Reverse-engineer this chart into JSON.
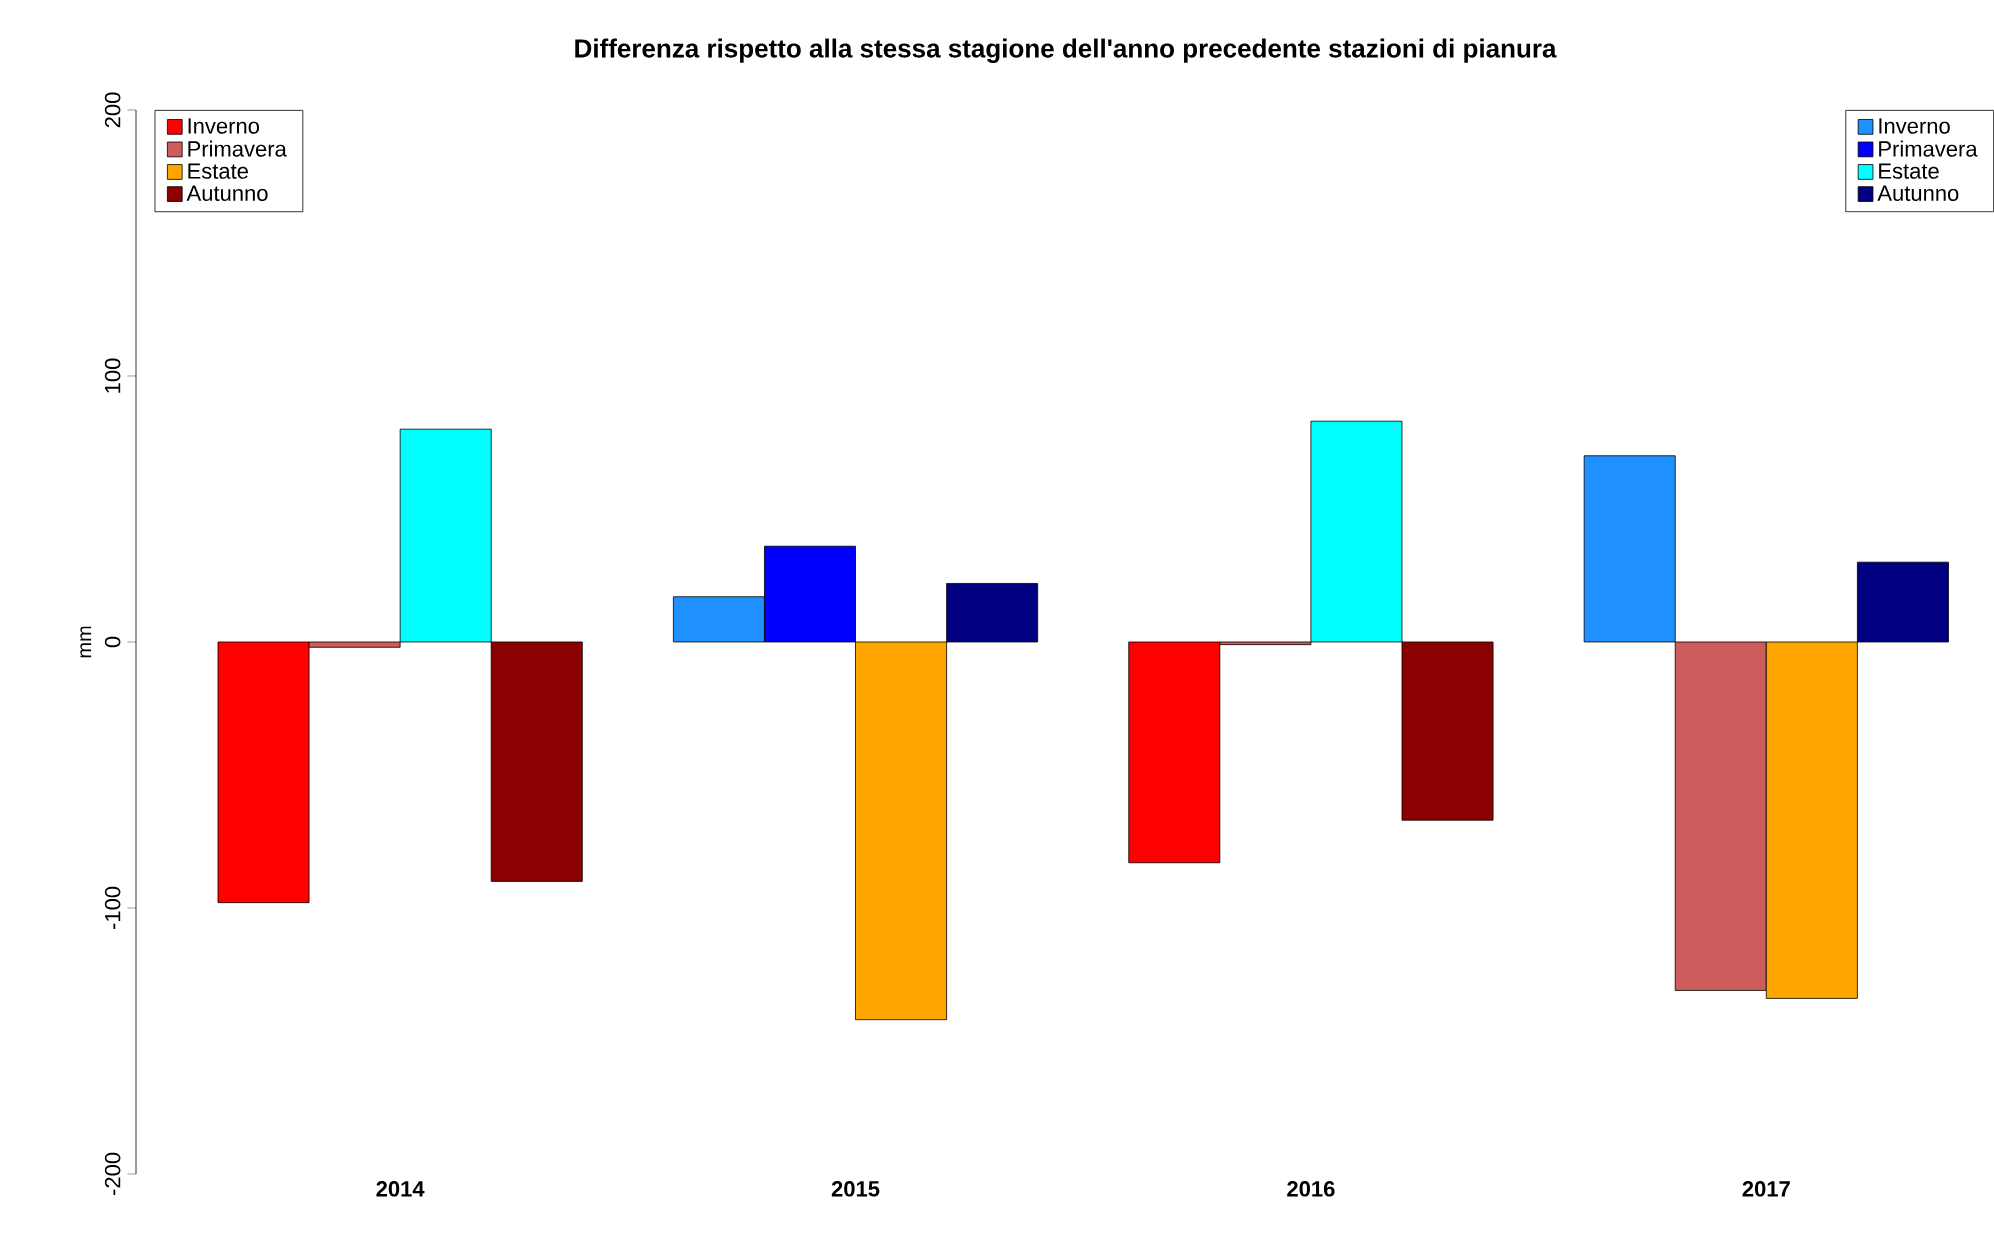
{
  "chart_data": {
    "type": "bar",
    "title": "Differenza rispetto alla stessa stagione dell'anno precedente stazioni di pianura",
    "ylabel": "mm",
    "categories": [
      "2014",
      "2015",
      "2016",
      "2017"
    ],
    "series": [
      {
        "name": "Inverno",
        "color": "#ff0000",
        "values": [
          -98,
          null,
          -83,
          null
        ]
      },
      {
        "name": "Primavera",
        "color": "#cd5c5c",
        "values": [
          -2,
          null,
          -1,
          -131
        ]
      },
      {
        "name": "Estate",
        "color": "#ffa500",
        "values": [
          null,
          -142,
          null,
          -134
        ]
      },
      {
        "name": "Autunno",
        "color": "#8b0000",
        "values": [
          -90,
          null,
          -67,
          null
        ]
      },
      {
        "name": "Inverno",
        "color": "#1e90ff",
        "values": [
          null,
          17,
          null,
          70
        ]
      },
      {
        "name": "Primavera",
        "color": "#0000ff",
        "values": [
          null,
          36,
          null,
          null
        ]
      },
      {
        "name": "Estate",
        "color": "#00ffff",
        "values": [
          80,
          null,
          83,
          null
        ]
      },
      {
        "name": "Autunno",
        "color": "#000080",
        "values": [
          null,
          22,
          null,
          30
        ]
      }
    ],
    "ylim": [
      -200,
      200
    ],
    "yticks": [
      -200,
      -100,
      0,
      100,
      200
    ],
    "legend": "top"
  }
}
